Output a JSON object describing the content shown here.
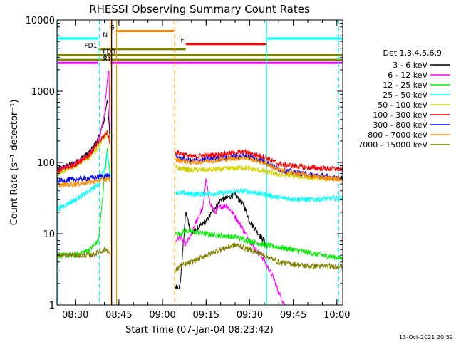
{
  "chart_data": {
    "type": "line",
    "title": "RHESSI Observing Summary Count Rates",
    "xlabel": "Start Time (07-Jan-04 08:23:42)",
    "ylabel": "Count Rate (s⁻¹ detector⁻¹)",
    "yscale": "log",
    "ylim": [
      1,
      10000
    ],
    "xlim_minutes": [
      23.7,
      122
    ],
    "x_ticks": [
      "08:30",
      "08:45",
      "09:00",
      "09:15",
      "09:30",
      "09:45",
      "10:00"
    ],
    "y_ticks": [
      "1",
      "10",
      "100",
      "1000",
      "10000"
    ],
    "timestamp": "13-Oct-2021 20:52",
    "legend": {
      "title": "Det 1,3,4,5,6,9",
      "placement": "right",
      "items": [
        {
          "label": "3 - 6 keV",
          "color": "#000000"
        },
        {
          "label": "6 - 12 keV",
          "color": "#ff00ff"
        },
        {
          "label": "12 - 25 keV",
          "color": "#00ee00"
        },
        {
          "label": "25 - 50 keV",
          "color": "#00ffff"
        },
        {
          "label": "50 - 100 keV",
          "color": "#d4d400"
        },
        {
          "label": "100 - 300 keV",
          "color": "#ff0000"
        },
        {
          "label": "300 - 800 keV",
          "color": "#0000ff"
        },
        {
          "label": "800 - 7000 keV",
          "color": "#ff8c00"
        },
        {
          "label": "7000 - 15000 keV",
          "color": "#808000"
        }
      ]
    },
    "flag_bars": [
      {
        "label": "S",
        "color": "#ff8c00",
        "segments": [
          [
            44,
            64
          ]
        ],
        "level": 7000
      },
      {
        "label": "N",
        "color": "#00ffff",
        "segments": [
          [
            23.7,
            38
          ],
          [
            96,
            122
          ]
        ],
        "level": 5500
      },
      {
        "label": "F",
        "color": "#ff0000",
        "segments": [
          [
            68,
            96
          ]
        ],
        "level": 4600
      },
      {
        "label": "FD1",
        "color": "#808000",
        "segments": [
          [
            38,
            68
          ]
        ],
        "level": 3900
      },
      {
        "label": "FD3",
        "color": "#808000",
        "segments": [
          [
            23.7,
            122
          ]
        ],
        "level": 3200
      },
      {
        "label": "A0",
        "color": "#808000",
        "segments": [
          [
            23.7,
            122
          ]
        ],
        "level": 2750
      },
      {
        "label": "A1",
        "color": "#ff00ff",
        "segments": [
          [
            23.7,
            38
          ],
          [
            42,
            68
          ],
          [
            68,
            122
          ]
        ],
        "level": 2500
      }
    ],
    "vlines": [
      {
        "x": 23.8,
        "color": "#00ffff",
        "style": "solid"
      },
      {
        "x": 38.3,
        "color": "#00ffff",
        "style": "dashed"
      },
      {
        "x": 42.0,
        "color": "#ff8c00",
        "style": "solid"
      },
      {
        "x": 42.5,
        "color": "#000000",
        "style": "solid"
      },
      {
        "x": 44.2,
        "color": "#ff8c00",
        "style": "solid"
      },
      {
        "x": 64.2,
        "color": "#ff8c00",
        "style": "dashed"
      },
      {
        "x": 95.8,
        "color": "#00ffff",
        "style": "solid"
      },
      {
        "x": 120.6,
        "color": "#00ffff",
        "style": "dashed"
      }
    ],
    "segments": [
      {
        "t0": 23.7,
        "t1": 42.0
      },
      {
        "t0": 64.5,
        "t1": 122
      }
    ],
    "series": [
      {
        "name": "3 - 6 keV",
        "color": "#000000",
        "x": [
          23.7,
          30,
          35,
          38,
          40,
          41,
          42,
          64.5,
          66,
          68,
          70,
          75,
          80,
          85,
          88,
          90,
          93,
          95,
          96
        ],
        "y": [
          80,
          100,
          140,
          220,
          400,
          800,
          200,
          1.8,
          1.8,
          20,
          10,
          15,
          30,
          35,
          25,
          15,
          10,
          8,
          6
        ]
      },
      {
        "name": "6 - 12 keV",
        "color": "#ff00ff",
        "x": [
          23.7,
          30,
          35,
          38,
          40,
          41,
          41.6,
          42,
          64.5,
          66,
          68,
          70,
          72,
          74,
          75,
          76,
          78,
          80,
          82,
          84,
          86,
          88,
          90,
          92,
          94,
          96,
          98,
          100,
          102
        ],
        "y": [
          75,
          95,
          130,
          200,
          450,
          1500,
          2000,
          200,
          8,
          9,
          7,
          10,
          16,
          24,
          60,
          30,
          20,
          24,
          25,
          20,
          15,
          11,
          8,
          6,
          5,
          3.5,
          2.5,
          1.5,
          1
        ]
      },
      {
        "name": "12 - 25 keV",
        "color": "#00ee00",
        "x": [
          23.7,
          30,
          35,
          38,
          40,
          41,
          42,
          64.5,
          66,
          68,
          75,
          85,
          95,
          105,
          115,
          122
        ],
        "y": [
          5,
          5,
          6,
          8,
          60,
          150,
          60,
          10,
          10,
          11,
          10,
          9,
          7,
          6,
          5,
          4.5
        ]
      },
      {
        "name": "25 - 50 keV",
        "color": "#00ffff",
        "x": [
          23.7,
          30,
          35,
          38,
          40,
          41,
          42,
          64.5,
          70,
          80,
          88,
          95,
          100,
          110,
          122
        ],
        "y": [
          22,
          30,
          40,
          50,
          80,
          140,
          70,
          38,
          36,
          37,
          40,
          36,
          32,
          30,
          32
        ]
      },
      {
        "name": "50 - 100 keV",
        "color": "#d4d400",
        "x": [
          23.7,
          30,
          35,
          38,
          40,
          41,
          42,
          64.5,
          70,
          80,
          88,
          95,
          100,
          110,
          122
        ],
        "y": [
          70,
          90,
          120,
          170,
          230,
          260,
          170,
          85,
          78,
          80,
          85,
          75,
          68,
          62,
          58
        ]
      },
      {
        "name": "100 - 300 keV",
        "color": "#ff0000",
        "x": [
          23.7,
          30,
          35,
          38,
          40,
          41,
          42,
          64.5,
          70,
          80,
          88,
          95,
          100,
          110,
          122
        ],
        "y": [
          75,
          95,
          130,
          190,
          240,
          270,
          180,
          140,
          120,
          130,
          140,
          120,
          95,
          85,
          80
        ]
      },
      {
        "name": "300 - 800 keV",
        "color": "#0000ff",
        "x": [
          23.7,
          30,
          35,
          38,
          40,
          41,
          42,
          64.5,
          70,
          80,
          88,
          95,
          100,
          110,
          122
        ],
        "y": [
          55,
          58,
          60,
          63,
          65,
          66,
          64,
          120,
          105,
          115,
          125,
          105,
          80,
          68,
          60
        ]
      },
      {
        "name": "800 - 7000 keV",
        "color": "#ff8c00",
        "x": [
          23.7,
          30,
          35,
          38,
          40,
          41,
          42,
          64.5,
          70,
          80,
          88,
          95,
          100,
          110,
          122
        ],
        "y": [
          48,
          50,
          53,
          56,
          58,
          59,
          57,
          110,
          100,
          110,
          118,
          100,
          78,
          65,
          58
        ]
      },
      {
        "name": "7000 - 15000 keV",
        "color": "#808000",
        "x": [
          23.7,
          30,
          35,
          38,
          40,
          41,
          42,
          64.5,
          66,
          70,
          75,
          80,
          85,
          90,
          95,
          100,
          110,
          122
        ],
        "y": [
          5,
          5,
          5,
          5.5,
          6,
          6,
          5,
          3,
          3.5,
          4,
          5,
          6,
          7,
          6,
          5,
          4,
          3.5,
          3.5
        ]
      }
    ]
  }
}
